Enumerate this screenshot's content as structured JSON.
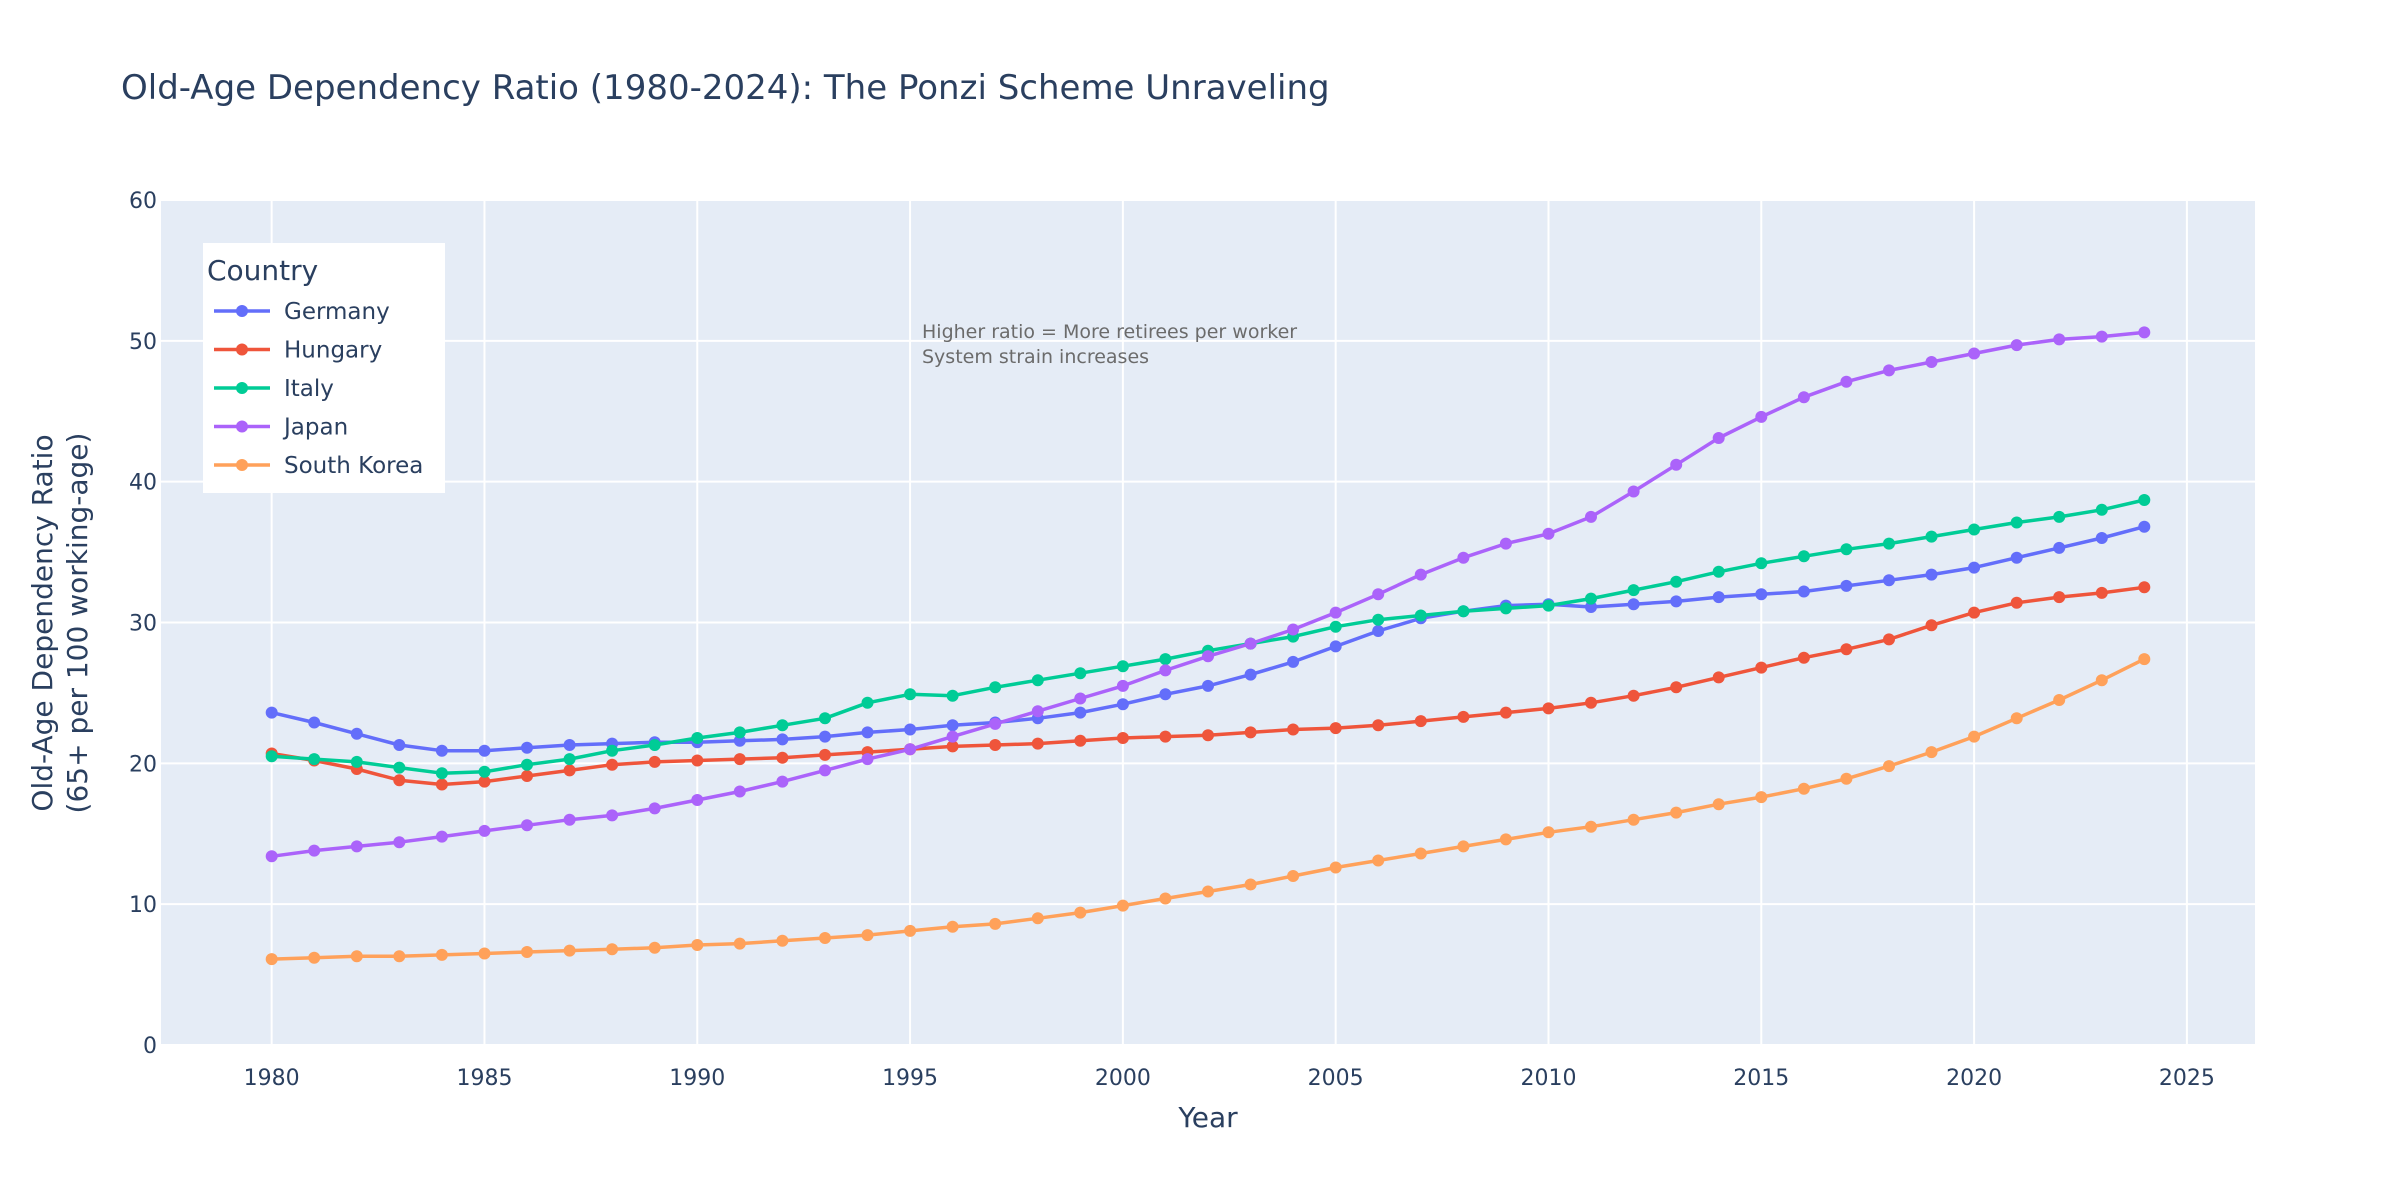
{
  "chart_data": {
    "type": "line",
    "title": "Old-Age Dependency Ratio (1980-2024): The Ponzi Scheme Unraveling",
    "xlabel": "Year",
    "ylabel_lines": [
      "Old-Age Dependency Ratio",
      "(65+ per 100 working-age)"
    ],
    "xlim": [
      1977.4,
      2026.6
    ],
    "ylim": [
      0,
      60
    ],
    "xticks": [
      1980,
      1985,
      1990,
      1995,
      2000,
      2005,
      2010,
      2015,
      2020,
      2025
    ],
    "yticks": [
      0,
      10,
      20,
      30,
      40,
      50,
      60
    ],
    "grid": true,
    "legend_title": "Country",
    "legend_position": "top-left",
    "annotation_lines": [
      "Higher ratio = More retirees per worker",
      "System strain increases"
    ],
    "x": [
      1980,
      1981,
      1982,
      1983,
      1984,
      1985,
      1986,
      1987,
      1988,
      1989,
      1990,
      1991,
      1992,
      1993,
      1994,
      1995,
      1996,
      1997,
      1998,
      1999,
      2000,
      2001,
      2002,
      2003,
      2004,
      2005,
      2006,
      2007,
      2008,
      2009,
      2010,
      2011,
      2012,
      2013,
      2014,
      2015,
      2016,
      2017,
      2018,
      2019,
      2020,
      2021,
      2022,
      2023,
      2024
    ],
    "series": [
      {
        "name": "Germany",
        "color": "#636efa",
        "values": [
          23.6,
          22.9,
          22.1,
          21.3,
          20.9,
          20.9,
          21.1,
          21.3,
          21.4,
          21.5,
          21.5,
          21.6,
          21.7,
          21.9,
          22.2,
          22.4,
          22.7,
          22.9,
          23.2,
          23.6,
          24.2,
          24.9,
          25.5,
          26.3,
          27.2,
          28.3,
          29.4,
          30.3,
          30.8,
          31.2,
          31.3,
          31.1,
          31.3,
          31.5,
          31.8,
          32.0,
          32.2,
          32.6,
          33.0,
          33.4,
          33.9,
          34.6,
          35.3,
          36.0,
          36.8
        ]
      },
      {
        "name": "Hungary",
        "color": "#ef553b",
        "values": [
          20.7,
          20.2,
          19.6,
          18.8,
          18.5,
          18.7,
          19.1,
          19.5,
          19.9,
          20.1,
          20.2,
          20.3,
          20.4,
          20.6,
          20.8,
          21.0,
          21.2,
          21.3,
          21.4,
          21.6,
          21.8,
          21.9,
          22.0,
          22.2,
          22.4,
          22.5,
          22.7,
          23.0,
          23.3,
          23.6,
          23.9,
          24.3,
          24.8,
          25.4,
          26.1,
          26.8,
          27.5,
          28.1,
          28.8,
          29.8,
          30.7,
          31.4,
          31.8,
          32.1,
          32.5
        ]
      },
      {
        "name": "Italy",
        "color": "#00cc96",
        "values": [
          20.5,
          20.3,
          20.1,
          19.7,
          19.3,
          19.4,
          19.9,
          20.3,
          20.9,
          21.3,
          21.8,
          22.2,
          22.7,
          23.2,
          24.3,
          24.9,
          24.8,
          25.4,
          25.9,
          26.4,
          26.9,
          27.4,
          28.0,
          28.5,
          29.0,
          29.7,
          30.2,
          30.5,
          30.8,
          31.0,
          31.2,
          31.7,
          32.3,
          32.9,
          33.6,
          34.2,
          34.7,
          35.2,
          35.6,
          36.1,
          36.6,
          37.1,
          37.5,
          38.0,
          38.7
        ]
      },
      {
        "name": "Japan",
        "color": "#ab63fa",
        "values": [
          13.4,
          13.8,
          14.1,
          14.4,
          14.8,
          15.2,
          15.6,
          16.0,
          16.3,
          16.8,
          17.4,
          18.0,
          18.7,
          19.5,
          20.3,
          21.0,
          21.9,
          22.8,
          23.7,
          24.6,
          25.5,
          26.6,
          27.6,
          28.5,
          29.5,
          30.7,
          32.0,
          33.4,
          34.6,
          35.6,
          36.3,
          37.5,
          39.3,
          41.2,
          43.1,
          44.6,
          46.0,
          47.1,
          47.9,
          48.5,
          49.1,
          49.7,
          50.1,
          50.3,
          50.6
        ]
      },
      {
        "name": "South Korea",
        "color": "#ffa15a",
        "values": [
          6.1,
          6.2,
          6.3,
          6.3,
          6.4,
          6.5,
          6.6,
          6.7,
          6.8,
          6.9,
          7.1,
          7.2,
          7.4,
          7.6,
          7.8,
          8.1,
          8.4,
          8.6,
          9.0,
          9.4,
          9.9,
          10.4,
          10.9,
          11.4,
          12.0,
          12.6,
          13.1,
          13.6,
          14.1,
          14.6,
          15.1,
          15.5,
          16.0,
          16.5,
          17.1,
          17.6,
          18.2,
          18.9,
          19.8,
          20.8,
          21.9,
          23.2,
          24.5,
          25.9,
          27.4
        ]
      }
    ]
  }
}
